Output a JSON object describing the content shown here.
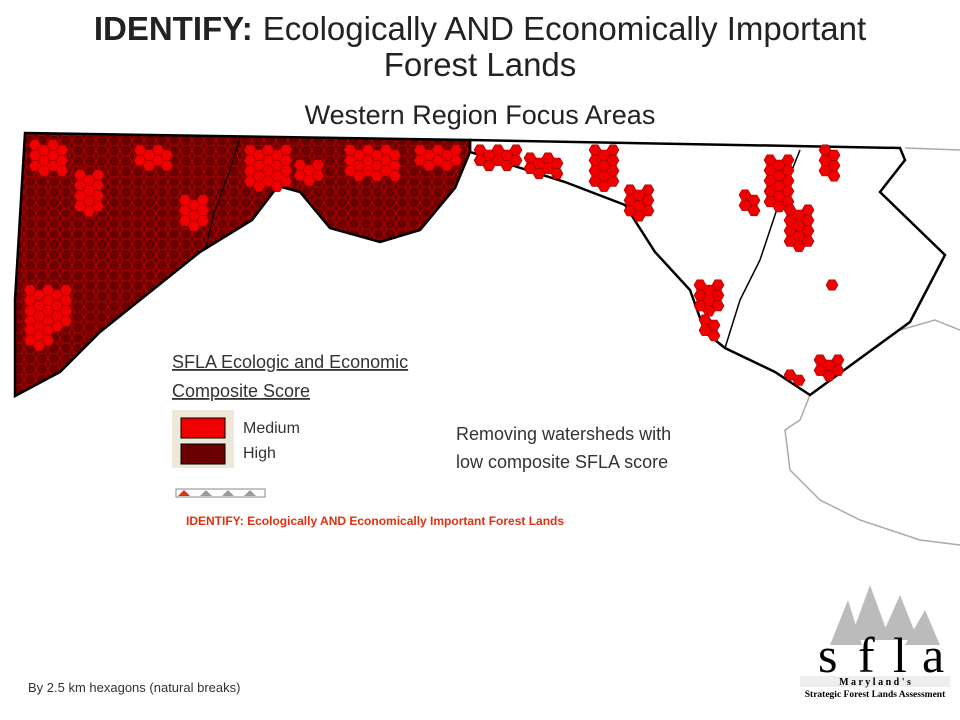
{
  "header": {
    "title_lead": "IDENTIFY:",
    "title_main": "Ecologically AND Economically Important Forest Lands",
    "subtitle": "Western Region Focus Areas"
  },
  "legend": {
    "heading_lines": [
      "SFLA Ecologic and Economic",
      "Composite Score"
    ],
    "items": [
      {
        "label": "Medium",
        "color": "#f00000"
      },
      {
        "label": "High",
        "color": "#6b0000"
      }
    ]
  },
  "note_lines": [
    "Removing watersheds with",
    "low composite SFLA score"
  ],
  "progress_label": "IDENTIFY: Ecologically AND Economically Important Forest Lands",
  "footnote": "By 2.5 km hexagons (natural breaks)",
  "logo": {
    "letters": [
      "s",
      "f",
      "l",
      "a"
    ],
    "state": "M a r y l a n d ' s",
    "tagline": "Strategic Forest Lands Assessment"
  }
}
